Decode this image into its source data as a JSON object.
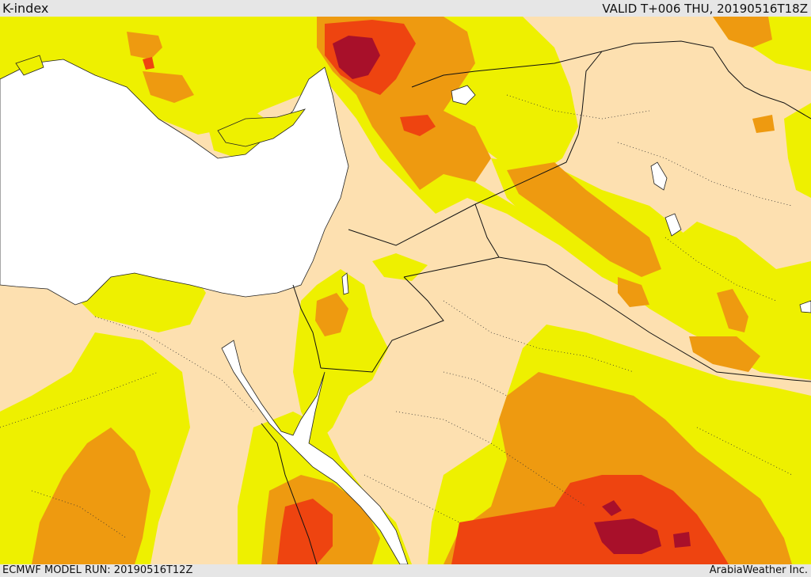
{
  "header": {
    "title": "K-index",
    "valid": "VALID T+006 THU, 20190516T18Z"
  },
  "footer": {
    "model_run": "ECMWF MODEL RUN: 20190516T12Z",
    "credit": "ArabiaWeather Inc."
  },
  "legend_colors": {
    "background": "#fde0b0",
    "level1": "#eef000",
    "level2": "#ee9a10",
    "level3": "#ee4410",
    "level4": "#a8102a",
    "water": "#ffffff"
  }
}
